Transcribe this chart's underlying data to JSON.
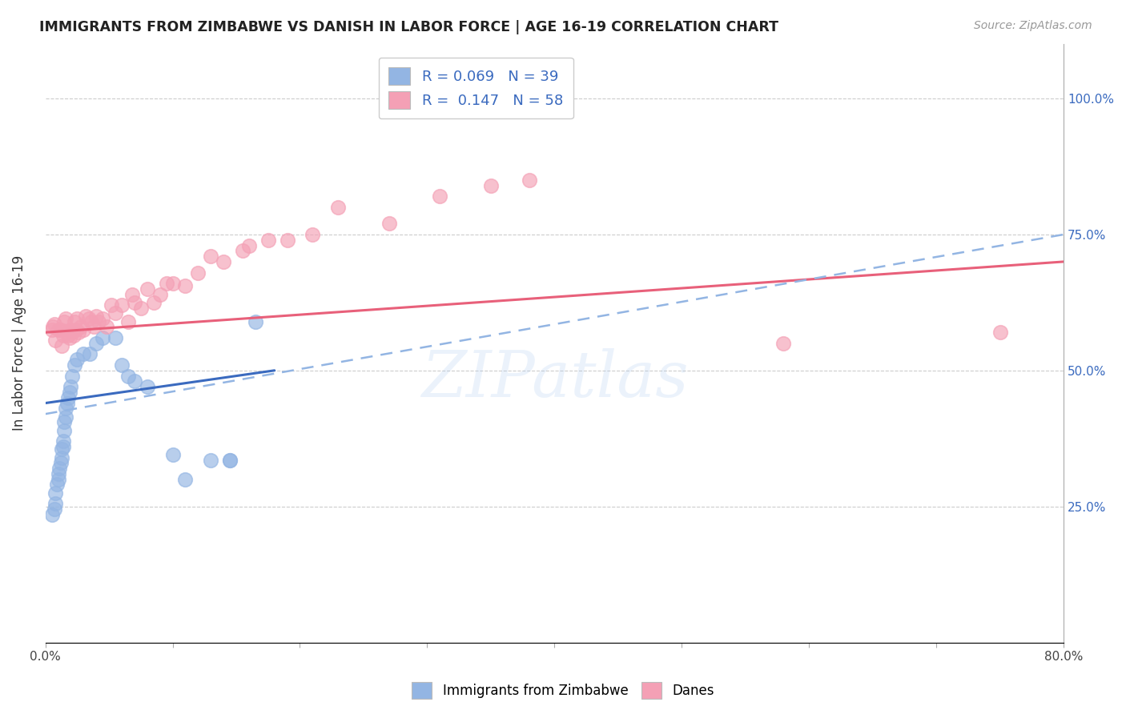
{
  "title": "IMMIGRANTS FROM ZIMBABWE VS DANISH IN LABOR FORCE | AGE 16-19 CORRELATION CHART",
  "source": "Source: ZipAtlas.com",
  "ylabel": "In Labor Force | Age 16-19",
  "xlim": [
    0.0,
    0.8
  ],
  "ylim": [
    0.0,
    1.1
  ],
  "ytick_positions": [
    0.0,
    0.25,
    0.5,
    0.75,
    1.0
  ],
  "ytick_labels": [
    "",
    "25.0%",
    "50.0%",
    "75.0%",
    "100.0%"
  ],
  "xtick_positions": [
    0.0,
    0.1,
    0.2,
    0.3,
    0.4,
    0.5,
    0.6,
    0.7,
    0.8
  ],
  "xtick_labels": [
    "0.0%",
    "",
    "",
    "",
    "",
    "",
    "",
    "",
    "80.0%"
  ],
  "blue_color": "#93b5e3",
  "pink_color": "#f4a0b5",
  "blue_line_color": "#3a6abf",
  "pink_line_color": "#e8607a",
  "dashed_line_color": "#93b5e3",
  "watermark_text": "ZIPatlas",
  "R_blue": 0.069,
  "N_blue": 39,
  "R_pink": 0.147,
  "N_pink": 58,
  "blue_line_x0": 0.0,
  "blue_line_y0": 0.44,
  "blue_line_x1": 0.18,
  "blue_line_y1": 0.5,
  "pink_line_x0": 0.0,
  "pink_line_y0": 0.57,
  "pink_line_x1": 0.8,
  "pink_line_y1": 0.7,
  "dash_line_x0": 0.0,
  "dash_line_y0": 0.42,
  "dash_line_x1": 0.8,
  "dash_line_y1": 0.75,
  "blue_x": [
    0.005,
    0.007,
    0.008,
    0.008,
    0.009,
    0.01,
    0.01,
    0.011,
    0.012,
    0.013,
    0.013,
    0.014,
    0.014,
    0.015,
    0.015,
    0.016,
    0.016,
    0.017,
    0.018,
    0.019,
    0.02,
    0.021,
    0.023,
    0.025,
    0.03,
    0.035,
    0.04,
    0.045,
    0.055,
    0.06,
    0.065,
    0.07,
    0.08,
    0.1,
    0.11,
    0.13,
    0.145,
    0.145,
    0.165
  ],
  "blue_y": [
    0.235,
    0.245,
    0.255,
    0.275,
    0.29,
    0.3,
    0.31,
    0.32,
    0.33,
    0.34,
    0.355,
    0.36,
    0.37,
    0.39,
    0.405,
    0.415,
    0.43,
    0.44,
    0.45,
    0.46,
    0.47,
    0.49,
    0.51,
    0.52,
    0.53,
    0.53,
    0.55,
    0.56,
    0.56,
    0.51,
    0.49,
    0.48,
    0.47,
    0.345,
    0.3,
    0.335,
    0.335,
    0.335,
    0.59
  ],
  "pink_x": [
    0.005,
    0.006,
    0.007,
    0.008,
    0.01,
    0.012,
    0.013,
    0.014,
    0.015,
    0.016,
    0.017,
    0.018,
    0.019,
    0.02,
    0.021,
    0.022,
    0.023,
    0.024,
    0.025,
    0.026,
    0.028,
    0.03,
    0.032,
    0.034,
    0.036,
    0.038,
    0.04,
    0.042,
    0.045,
    0.048,
    0.052,
    0.055,
    0.06,
    0.065,
    0.068,
    0.07,
    0.075,
    0.08,
    0.085,
    0.09,
    0.095,
    0.1,
    0.11,
    0.12,
    0.13,
    0.14,
    0.155,
    0.16,
    0.175,
    0.19,
    0.21,
    0.23,
    0.27,
    0.31,
    0.35,
    0.38,
    0.58,
    0.75
  ],
  "pink_y": [
    0.575,
    0.58,
    0.585,
    0.555,
    0.575,
    0.575,
    0.545,
    0.565,
    0.59,
    0.595,
    0.57,
    0.565,
    0.56,
    0.575,
    0.57,
    0.565,
    0.59,
    0.575,
    0.595,
    0.57,
    0.58,
    0.575,
    0.6,
    0.595,
    0.59,
    0.58,
    0.6,
    0.59,
    0.595,
    0.58,
    0.62,
    0.605,
    0.62,
    0.59,
    0.64,
    0.625,
    0.615,
    0.65,
    0.625,
    0.64,
    0.66,
    0.66,
    0.655,
    0.68,
    0.71,
    0.7,
    0.72,
    0.73,
    0.74,
    0.74,
    0.75,
    0.8,
    0.77,
    0.82,
    0.84,
    0.85,
    0.55,
    0.57
  ]
}
